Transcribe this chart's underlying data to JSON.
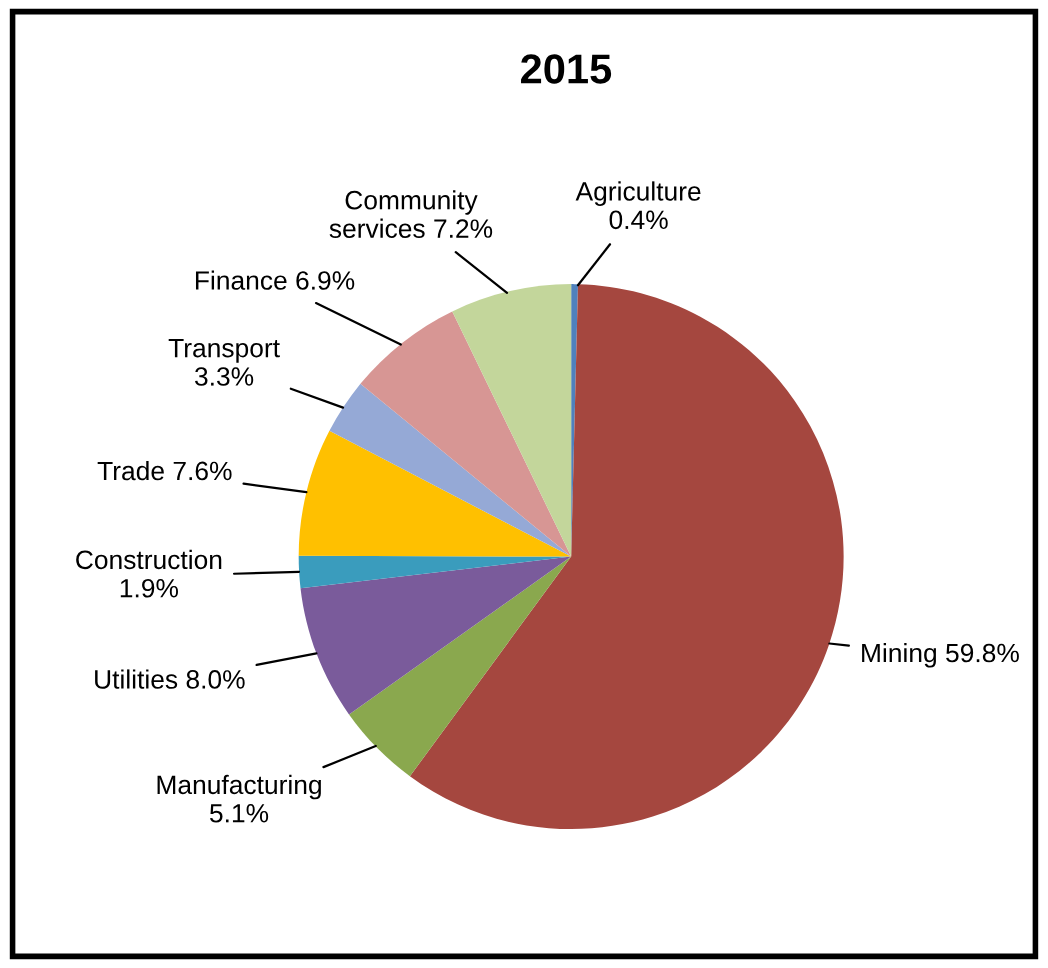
{
  "chart_data": {
    "type": "pie",
    "title": "2015",
    "categories": [
      "Agriculture",
      "Mining",
      "Manufacturing",
      "Utilities",
      "Construction",
      "Trade",
      "Transport",
      "Finance",
      "Community services"
    ],
    "values": [
      0.4,
      59.8,
      5.1,
      8.0,
      1.9,
      7.6,
      3.3,
      6.9,
      7.2
    ],
    "colors": [
      "#4f81bd",
      "#a5473f",
      "#8aa84e",
      "#7a5b9b",
      "#3a9cbd",
      "#ffc000",
      "#95a9d6",
      "#d79694",
      "#c3d69b"
    ],
    "value_labels": [
      "0.4%",
      "59.8%",
      "5.1%",
      "8.0%",
      "1.9%",
      "7.6%",
      "3.3%",
      "6.9%",
      "7.2%"
    ],
    "legend": false
  }
}
